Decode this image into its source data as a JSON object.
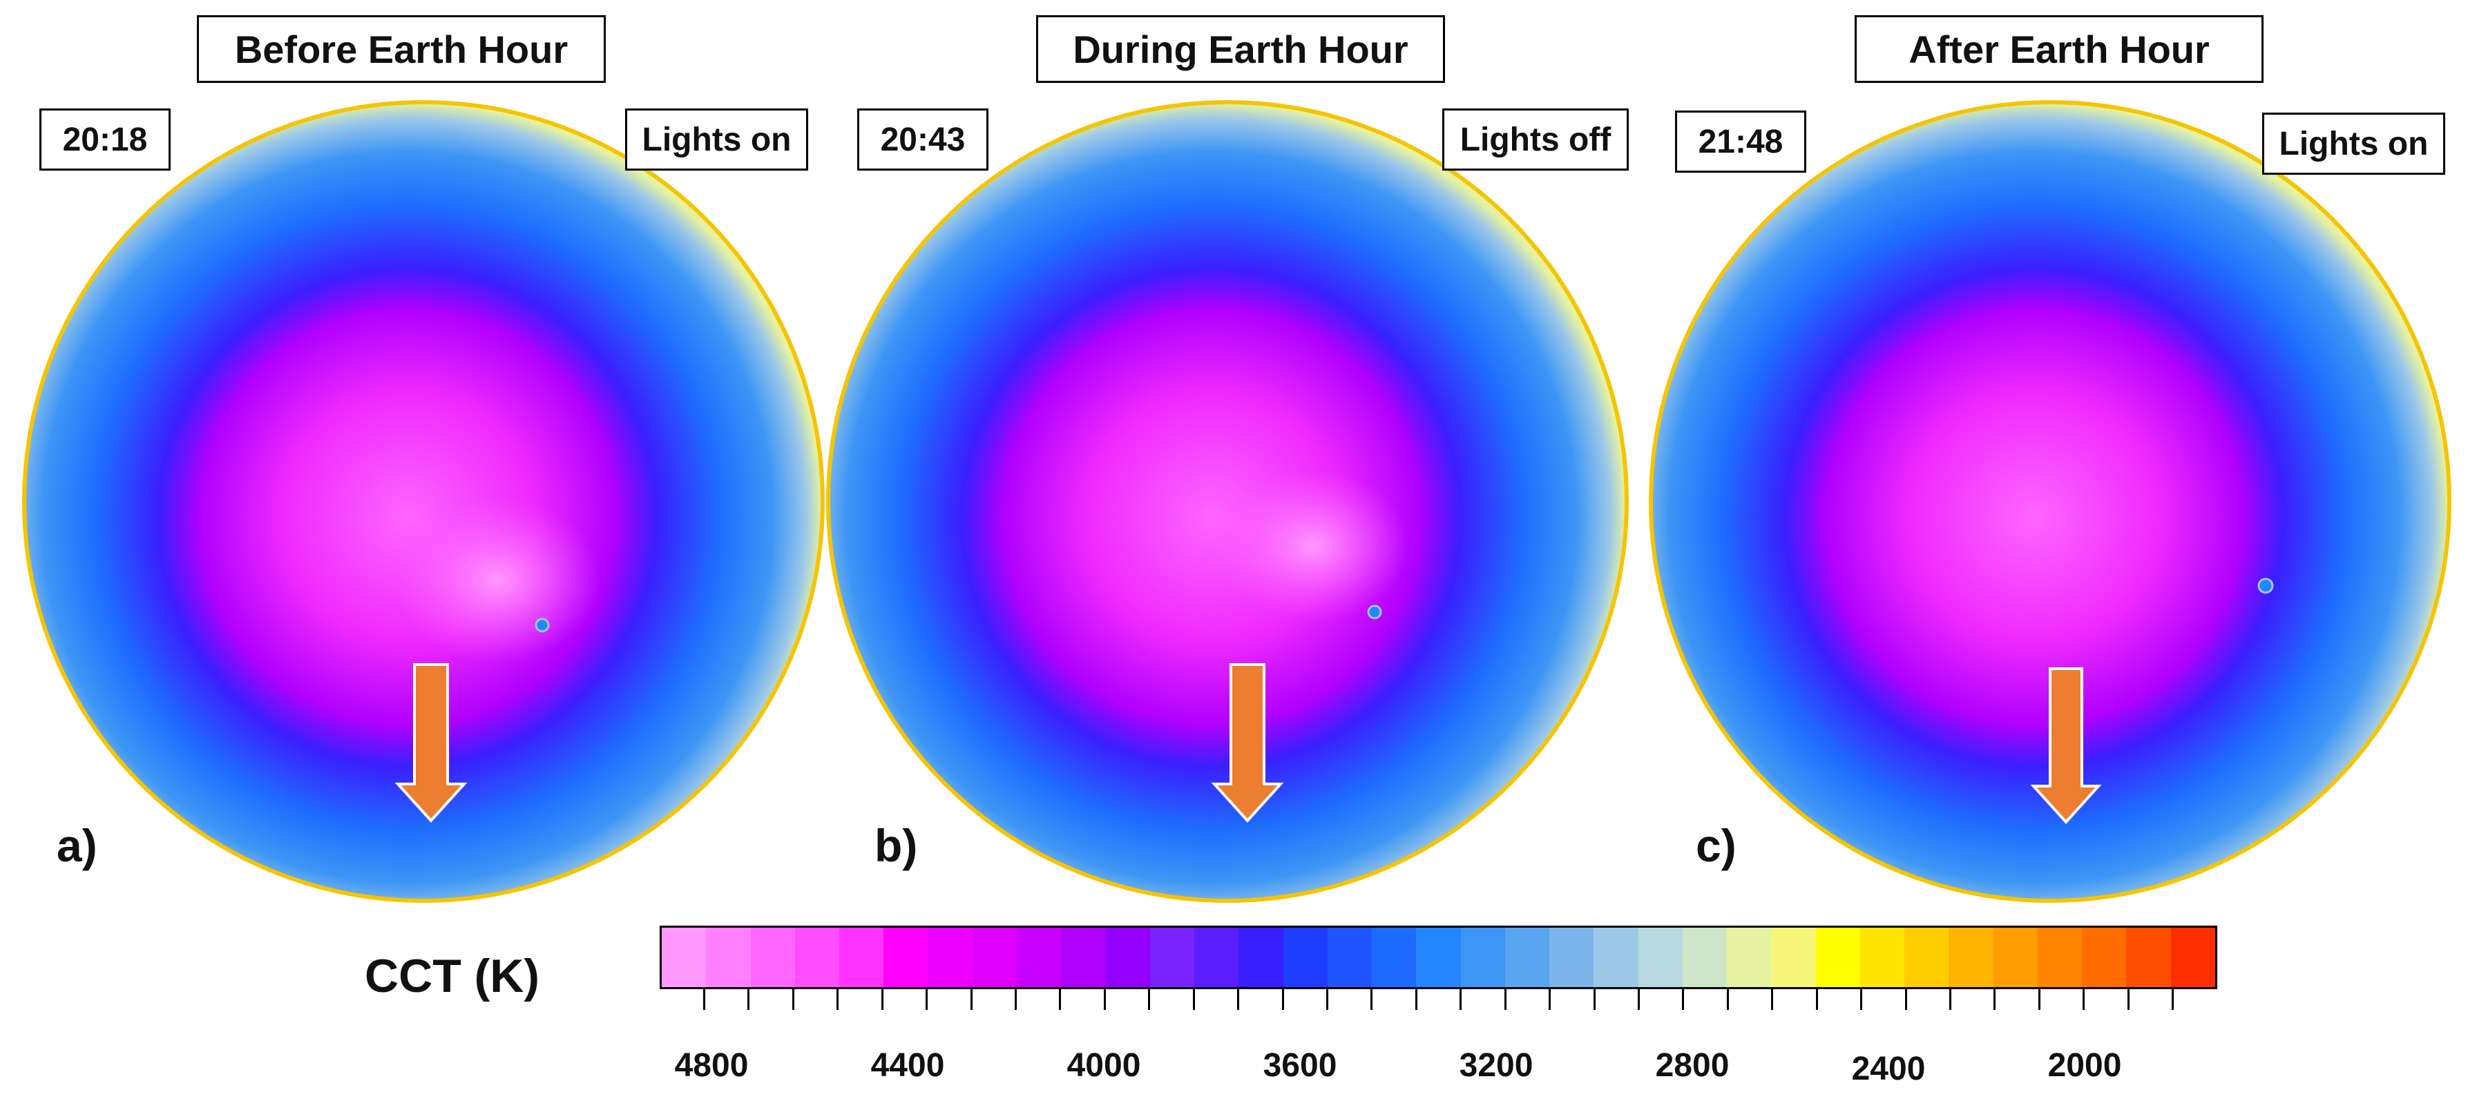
{
  "panels": [
    {
      "title": "Before Earth Hour",
      "time": "20:18",
      "status": "Lights on",
      "label": "a)"
    },
    {
      "title": "During Earth Hour",
      "time": "20:43",
      "status": "Lights off",
      "label": "b)"
    },
    {
      "title": "After Earth Hour",
      "time": "21:48",
      "status": "Lights on",
      "label": "c)"
    }
  ],
  "colorbar": {
    "title": "CCT (K)",
    "tick_labels": [
      "4800",
      "4400",
      "4000",
      "3600",
      "3200",
      "2800",
      "2400",
      "2000"
    ],
    "colors": [
      "#ff99ff",
      "#ff80ff",
      "#ff66ff",
      "#ff4dff",
      "#ff33ff",
      "#ff00ff",
      "#ee00ff",
      "#dd00ff",
      "#c800ff",
      "#b000ff",
      "#9400ff",
      "#7a22ff",
      "#5a1eff",
      "#3a1fff",
      "#1f3dff",
      "#1f55ff",
      "#1e6cff",
      "#2486ff",
      "#3d96f5",
      "#5aa5f0",
      "#7cb6ea",
      "#9cc8e8",
      "#b7d9e0",
      "#cde6c8",
      "#e6f2a0",
      "#f6f77a",
      "#ffff00",
      "#ffe400",
      "#ffcc00",
      "#ffb400",
      "#ff9c00",
      "#ff8400",
      "#ff6c00",
      "#ff4f00",
      "#ff2e00"
    ],
    "accent_arrow": "#ed7d31"
  }
}
